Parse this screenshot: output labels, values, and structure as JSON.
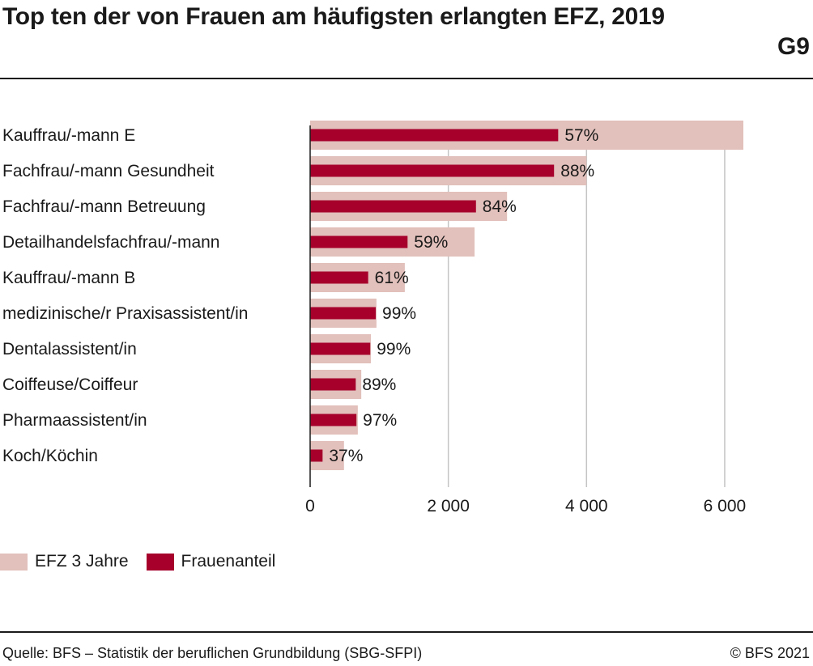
{
  "header": {
    "title": "Top ten der von Frauen am häufigsten erlangten EFZ, 2019",
    "code": "G9"
  },
  "colors": {
    "total": "#e2c0bb",
    "women": "#a6002b",
    "grid": "#c4c4c4",
    "axis": "#1a1a1a"
  },
  "chart_data": {
    "type": "bar",
    "orientation": "horizontal",
    "categories": [
      "Kauffrau/-mann E",
      "Fachfrau/-mann Gesundheit",
      "Fachfrau/-mann Betreuung",
      "Detailhandelsfachfrau/-mann",
      "Kauffrau/-mann B",
      "medizinische/r Praxisassistent/in",
      "Dentalassistent/in",
      "Coiffeuse/Coiffeur",
      "Pharmaassistent/in",
      "Koch/Köchin"
    ],
    "series": [
      {
        "name": "EFZ 3 Jahre",
        "values": [
          6270,
          4000,
          2850,
          2380,
          1370,
          960,
          880,
          740,
          690,
          490
        ]
      },
      {
        "name": "Frauenanteil",
        "values": [
          3590,
          3530,
          2400,
          1410,
          840,
          950,
          870,
          660,
          670,
          180
        ]
      }
    ],
    "data_labels": [
      "57%",
      "88%",
      "84%",
      "59%",
      "61%",
      "99%",
      "99%",
      "89%",
      "97%",
      "37%"
    ],
    "xlim": [
      0,
      6700
    ],
    "xticks": [
      0,
      2000,
      4000,
      6000
    ],
    "xtick_labels": [
      "0",
      "2 000",
      "4 000",
      "6 000"
    ],
    "grid": true,
    "legend_position": "bottom-left"
  },
  "footer": {
    "source": "Quelle: BFS – Statistik der beruflichen Grundbildung (SBG-SFPI)",
    "copyright": "© BFS 2021"
  }
}
